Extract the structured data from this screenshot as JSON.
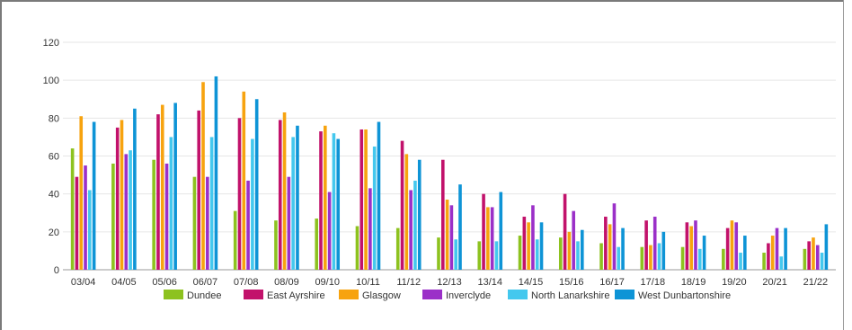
{
  "chart_data": {
    "type": "bar",
    "title": "",
    "xlabel": "",
    "ylabel": "",
    "ylim": [
      0,
      120
    ],
    "yticks": [
      0,
      20,
      40,
      60,
      80,
      100,
      120
    ],
    "grid": true,
    "legend_position": "bottom",
    "categories": [
      "03/04",
      "04/05",
      "05/06",
      "06/07",
      "07/08",
      "08/09",
      "09/10",
      "10/11",
      "11/12",
      "12/13",
      "13/14",
      "14/15",
      "15/16",
      "16/17",
      "17/18",
      "18/19",
      "19/20",
      "20/21",
      "21/22"
    ],
    "series": [
      {
        "name": "Dundee",
        "color": "#8dc21f",
        "values": [
          64,
          56,
          58,
          49,
          31,
          26,
          27,
          23,
          22,
          17,
          15,
          18,
          17,
          14,
          12,
          12,
          11,
          9,
          11
        ]
      },
      {
        "name": "East Ayrshire",
        "color": "#c2126b",
        "values": [
          49,
          75,
          82,
          84,
          80,
          79,
          73,
          74,
          68,
          58,
          40,
          28,
          40,
          28,
          26,
          25,
          22,
          14,
          15
        ]
      },
      {
        "name": "Glasgow",
        "color": "#f7a30f",
        "values": [
          81,
          79,
          87,
          99,
          94,
          83,
          76,
          74,
          61,
          37,
          33,
          25,
          20,
          24,
          13,
          23,
          26,
          18,
          17
        ]
      },
      {
        "name": "Inverclyde",
        "color": "#9b30c8",
        "values": [
          55,
          61,
          56,
          49,
          47,
          49,
          41,
          43,
          42,
          34,
          33,
          34,
          31,
          35,
          28,
          26,
          25,
          22,
          13
        ]
      },
      {
        "name": "North Lanarkshire",
        "color": "#44c8ee",
        "values": [
          42,
          63,
          70,
          70,
          69,
          70,
          72,
          65,
          47,
          16,
          15,
          16,
          15,
          12,
          14,
          11,
          9,
          7,
          9
        ]
      },
      {
        "name": "West Dunbartonshire",
        "color": "#0e94d6",
        "values": [
          78,
          85,
          88,
          102,
          90,
          76,
          69,
          78,
          58,
          45,
          41,
          25,
          21,
          22,
          20,
          18,
          18,
          22,
          24
        ]
      }
    ]
  }
}
